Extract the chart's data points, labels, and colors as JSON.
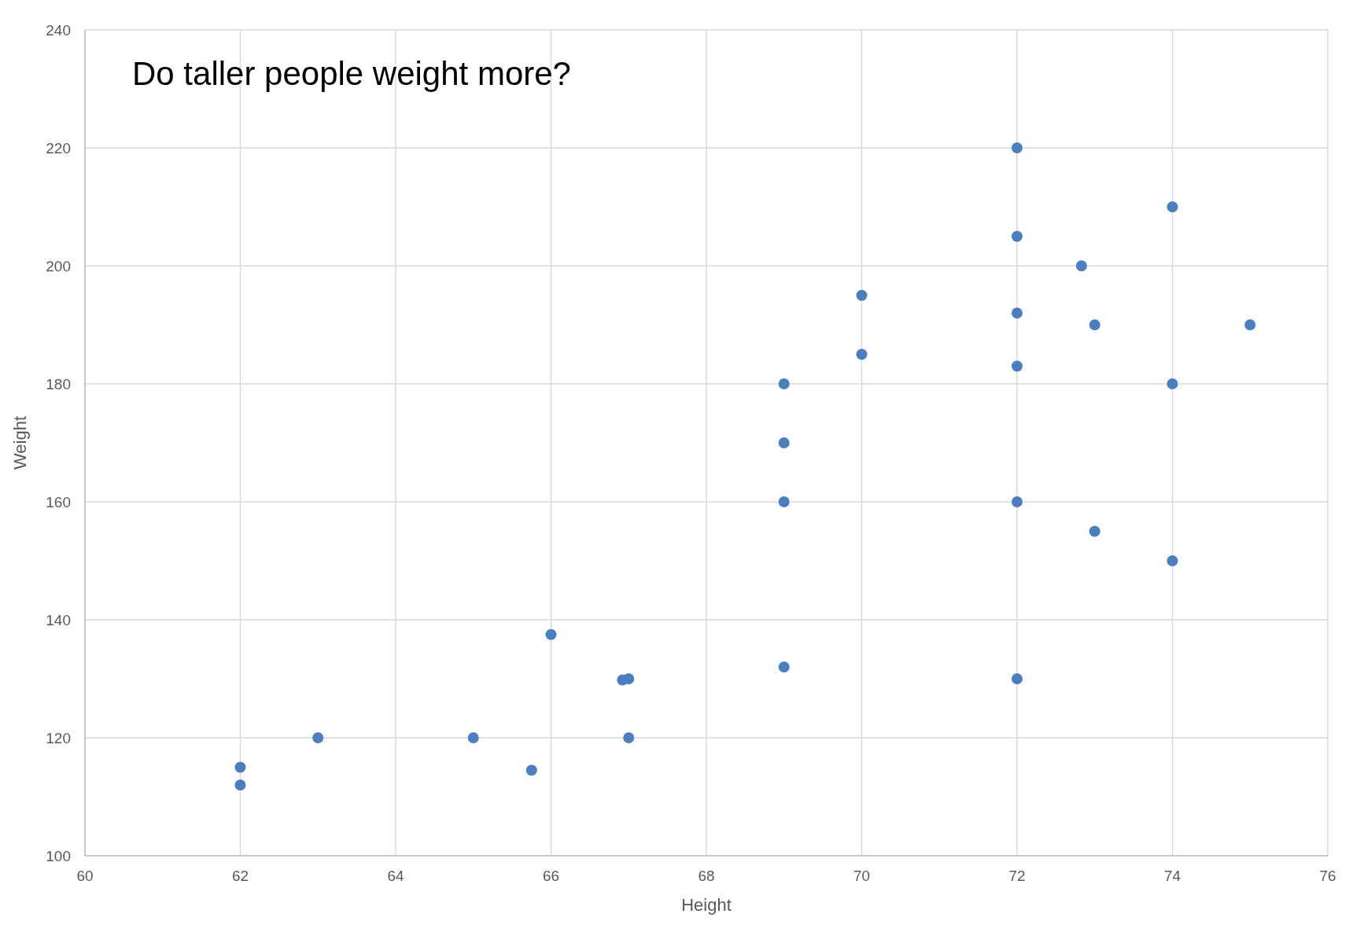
{
  "chart_data": {
    "type": "scatter",
    "title": "Do taller people weight more?",
    "xlabel": "Height",
    "ylabel": "Weight",
    "xlim": [
      60,
      76
    ],
    "xticks": [
      60,
      62,
      64,
      66,
      68,
      70,
      72,
      74,
      76
    ],
    "ylim": [
      100,
      240
    ],
    "yticks": [
      100,
      120,
      140,
      160,
      180,
      200,
      220,
      240
    ],
    "grid": true,
    "marker": "circle",
    "series": [
      {
        "color": "#4a7ebf",
        "x": [
          62,
          62,
          63,
          65,
          65.75,
          66,
          66.92,
          67,
          67,
          69,
          69,
          69,
          69,
          70,
          70,
          72,
          72,
          72,
          72,
          72,
          72,
          72.83,
          73,
          73,
          74,
          74,
          74,
          75
        ],
        "values": [
          115,
          112,
          120,
          120,
          114.5,
          137.5,
          129.8,
          130,
          120,
          180,
          170,
          160,
          132,
          195,
          185,
          220,
          205,
          192,
          183,
          160,
          130,
          200,
          190,
          155,
          210,
          180,
          150,
          190
        ]
      }
    ]
  }
}
